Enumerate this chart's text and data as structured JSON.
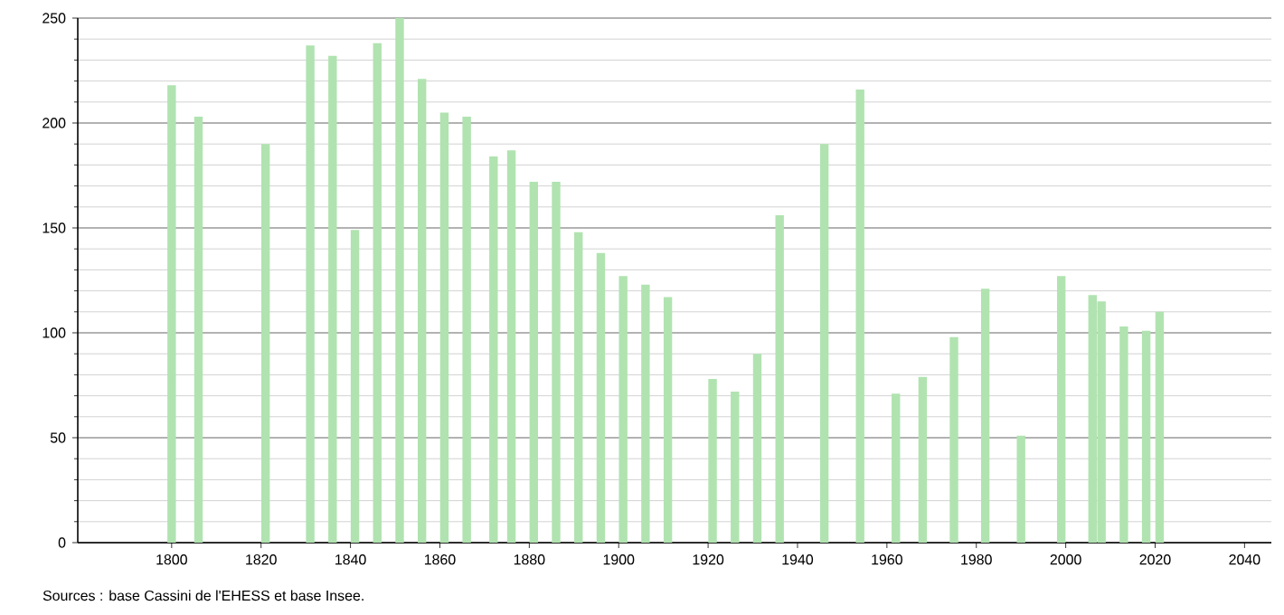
{
  "chart_data": {
    "type": "bar",
    "x": [
      1800,
      1806,
      1821,
      1831,
      1836,
      1841,
      1846,
      1851,
      1856,
      1861,
      1866,
      1872,
      1876,
      1881,
      1886,
      1891,
      1896,
      1901,
      1906,
      1911,
      1921,
      1926,
      1931,
      1936,
      1946,
      1954,
      1962,
      1968,
      1975,
      1982,
      1990,
      1999,
      2006,
      2008,
      2013,
      2018,
      2021
    ],
    "values": [
      218,
      203,
      190,
      237,
      232,
      149,
      238,
      250,
      221,
      205,
      203,
      184,
      187,
      172,
      172,
      148,
      138,
      127,
      123,
      117,
      78,
      72,
      90,
      156,
      190,
      216,
      71,
      79,
      98,
      121,
      51,
      127,
      118,
      115,
      103,
      101,
      110
    ],
    "color": "#b0e3b0",
    "xlim": [
      1779,
      2046
    ],
    "xticks": [
      1800,
      1820,
      1840,
      1860,
      1880,
      1900,
      1920,
      1940,
      1960,
      1980,
      2000,
      2020,
      2040
    ],
    "ylim": [
      0,
      250
    ],
    "yticks": [
      0,
      {
        "value": 10,
        "label": null
      },
      {
        "value": 20,
        "label": null
      },
      {
        "value": 30,
        "label": null
      },
      {
        "value": 40,
        "label": null
      },
      50,
      {
        "value": 60,
        "label": null
      },
      {
        "value": 70,
        "label": null
      },
      {
        "value": 80,
        "label": null
      },
      {
        "value": 90,
        "label": null
      },
      100,
      {
        "value": 110,
        "label": null
      },
      {
        "value": 120,
        "label": null
      },
      {
        "value": 130,
        "label": null
      },
      {
        "value": 140,
        "label": null
      },
      150,
      {
        "value": 160,
        "label": null
      },
      {
        "value": 170,
        "label": null
      },
      {
        "value": 180,
        "label": null
      },
      {
        "value": 190,
        "label": null
      },
      200,
      {
        "value": 210,
        "label": null
      },
      {
        "value": 220,
        "label": null
      },
      {
        "value": 230,
        "label": null
      },
      {
        "value": 240,
        "label": null
      },
      250
    ],
    "grid": "y",
    "annotations": [
      "Sources : base Cassini de l'EHESS et base Insee."
    ]
  }
}
